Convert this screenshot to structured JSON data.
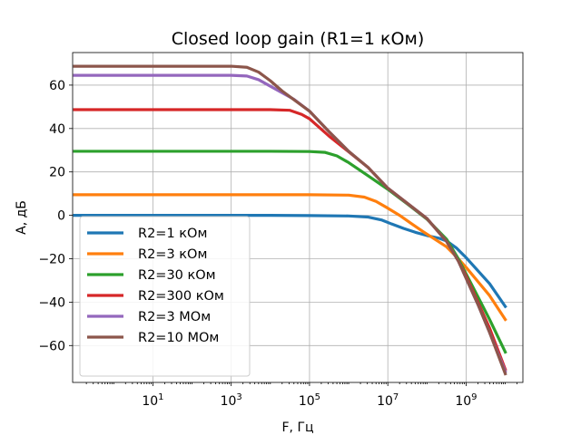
{
  "chart_data": {
    "type": "line",
    "title": "Closed loop gain (R1=1 кОм)",
    "xlabel": "F, Гц",
    "ylabel": "A, дБ",
    "xscale": "log",
    "xlim_log10": [
      -1.05,
      10.45
    ],
    "ylim": [
      -77,
      75
    ],
    "xticks": [
      {
        "log10": 1,
        "base": "10",
        "exp": "1"
      },
      {
        "log10": 3,
        "base": "10",
        "exp": "3"
      },
      {
        "log10": 5,
        "base": "10",
        "exp": "5"
      },
      {
        "log10": 7,
        "base": "10",
        "exp": "7"
      },
      {
        "log10": 9,
        "base": "10",
        "exp": "9"
      }
    ],
    "yticks": [
      60,
      40,
      20,
      0,
      -20,
      -40,
      -60
    ],
    "ytick_labels": [
      "60",
      "40",
      "20",
      "0",
      "−20",
      "−40",
      "−60"
    ],
    "grid": true,
    "legend_position": "lower-left",
    "series": [
      {
        "name": "R2=1 кОм",
        "color": "#1f77b4",
        "points": [
          [
            -1,
            0
          ],
          [
            4,
            0
          ],
          [
            5,
            -0.1
          ],
          [
            6,
            -0.3
          ],
          [
            6.5,
            -0.8
          ],
          [
            6.85,
            -2.2
          ],
          [
            7.1,
            -4
          ],
          [
            7.4,
            -6
          ],
          [
            7.7,
            -7.8
          ],
          [
            8,
            -9.3
          ],
          [
            8.3,
            -10.5
          ],
          [
            8.5,
            -11.8
          ],
          [
            8.75,
            -15
          ],
          [
            9,
            -19.5
          ],
          [
            9.3,
            -25.5
          ],
          [
            9.6,
            -31.5
          ],
          [
            10,
            -42
          ]
        ]
      },
      {
        "name": "R2=3 кОм",
        "color": "#ff7f0e",
        "points": [
          [
            -1,
            9.5
          ],
          [
            5,
            9.5
          ],
          [
            6,
            9.3
          ],
          [
            6.4,
            8.4
          ],
          [
            6.7,
            6.4
          ],
          [
            7,
            3.3
          ],
          [
            7.3,
            0
          ],
          [
            7.6,
            -3.8
          ],
          [
            7.9,
            -7.5
          ],
          [
            8.2,
            -11
          ],
          [
            8.5,
            -14.5
          ],
          [
            8.8,
            -20
          ],
          [
            9,
            -24
          ],
          [
            9.3,
            -30.5
          ],
          [
            9.6,
            -37
          ],
          [
            10,
            -48
          ]
        ]
      },
      {
        "name": "R2=30 кОм",
        "color": "#2ca02c",
        "points": [
          [
            -1,
            29.5
          ],
          [
            4,
            29.5
          ],
          [
            5,
            29.4
          ],
          [
            5.4,
            29
          ],
          [
            5.7,
            27.4
          ],
          [
            6,
            24.3
          ],
          [
            6.5,
            18.2
          ],
          [
            7,
            12
          ],
          [
            7.5,
            5.2
          ],
          [
            8,
            -1.8
          ],
          [
            8.5,
            -11
          ],
          [
            8.8,
            -20
          ],
          [
            9,
            -27
          ],
          [
            9.3,
            -37.5
          ],
          [
            9.6,
            -48
          ],
          [
            10,
            -63
          ]
        ]
      },
      {
        "name": "R2=300 кОм",
        "color": "#d62728",
        "points": [
          [
            -1,
            48.7
          ],
          [
            4,
            48.7
          ],
          [
            4.5,
            48.4
          ],
          [
            4.8,
            46.5
          ],
          [
            5,
            44.5
          ],
          [
            5.5,
            36.5
          ],
          [
            6,
            29.3
          ],
          [
            6.5,
            22
          ],
          [
            7,
            12.5
          ],
          [
            7.5,
            5.5
          ],
          [
            8,
            -1.5
          ],
          [
            8.5,
            -12
          ],
          [
            8.8,
            -21
          ],
          [
            9,
            -28
          ],
          [
            9.3,
            -40
          ],
          [
            9.6,
            -52
          ],
          [
            10,
            -71
          ]
        ]
      },
      {
        "name": "R2=3 МОм",
        "color": "#9467bd",
        "points": [
          [
            -1,
            64.5
          ],
          [
            3,
            64.5
          ],
          [
            3.4,
            64.2
          ],
          [
            3.7,
            62.5
          ],
          [
            3.95,
            60
          ],
          [
            4.3,
            56.5
          ],
          [
            4.6,
            53.5
          ],
          [
            5,
            48
          ],
          [
            5.5,
            38.5
          ],
          [
            6,
            29.5
          ],
          [
            6.5,
            22
          ],
          [
            7,
            12.5
          ],
          [
            7.5,
            5.5
          ],
          [
            8,
            -1.5
          ],
          [
            8.5,
            -12
          ],
          [
            8.8,
            -21
          ],
          [
            9,
            -29
          ],
          [
            9.3,
            -41
          ],
          [
            9.6,
            -54
          ],
          [
            10,
            -72
          ]
        ]
      },
      {
        "name": "R2=10 МОм",
        "color": "#8c564b",
        "points": [
          [
            -1,
            68.7
          ],
          [
            3,
            68.7
          ],
          [
            3.4,
            68.2
          ],
          [
            3.7,
            66
          ],
          [
            4,
            62
          ],
          [
            4.3,
            57.3
          ],
          [
            4.6,
            53.3
          ],
          [
            5,
            48
          ],
          [
            5.5,
            38.5
          ],
          [
            6,
            29.5
          ],
          [
            6.5,
            22
          ],
          [
            7,
            12.5
          ],
          [
            7.5,
            5.5
          ],
          [
            8,
            -1.5
          ],
          [
            8.5,
            -12
          ],
          [
            8.8,
            -21
          ],
          [
            9,
            -29
          ],
          [
            9.3,
            -41
          ],
          [
            9.6,
            -54
          ],
          [
            10,
            -73
          ]
        ]
      }
    ]
  }
}
